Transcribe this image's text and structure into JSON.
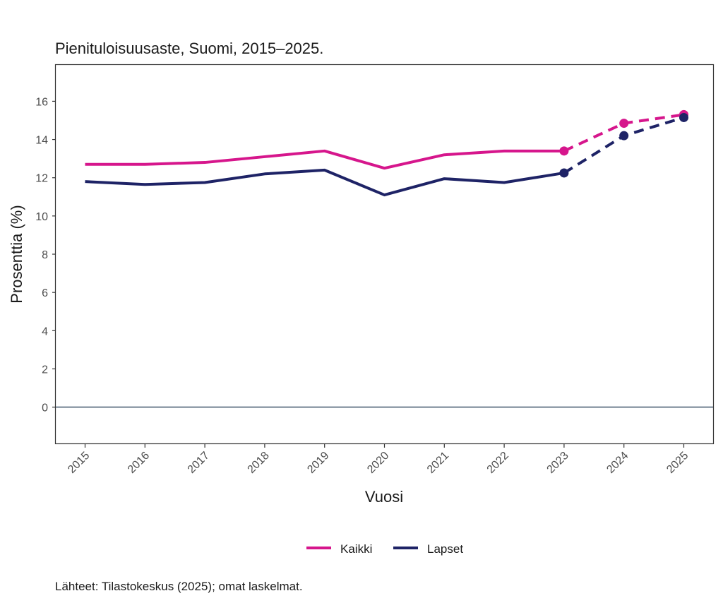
{
  "chart_data": {
    "type": "line",
    "title": "Pienituloisuusaste, Suomi, 2015–2025.",
    "xlabel": "Vuosi",
    "ylabel": "Prosenttia (%)",
    "caption": "Lähteet: Tilastokeskus (2025); omat laskelmat.",
    "x": [
      "2015",
      "2016",
      "2017",
      "2018",
      "2019",
      "2020",
      "2021",
      "2022",
      "2023",
      "2024",
      "2025"
    ],
    "ylim": [
      -1.9,
      17.9
    ],
    "yticks": [
      0,
      2,
      4,
      6,
      8,
      10,
      12,
      14,
      16
    ],
    "grid": false,
    "reference_line": 0,
    "legend_position": "bottom",
    "projected_from": "2023",
    "series": [
      {
        "name": "Kaikki",
        "color": "#d6168c",
        "values": [
          12.7,
          12.7,
          12.8,
          13.1,
          13.4,
          12.5,
          13.2,
          13.4,
          13.4,
          14.85,
          15.3
        ]
      },
      {
        "name": "Lapset",
        "color": "#1e2366",
        "values": [
          11.8,
          11.65,
          11.75,
          12.2,
          12.4,
          11.1,
          11.95,
          11.75,
          12.25,
          14.2,
          15.15
        ]
      }
    ]
  }
}
